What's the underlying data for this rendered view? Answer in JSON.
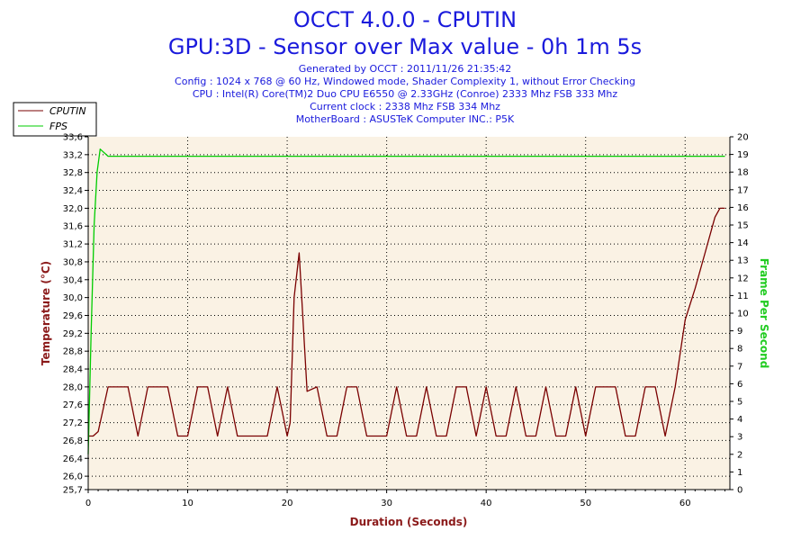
{
  "title": "OCCT 4.0.0 - CPUTIN",
  "subtitle": "GPU:3D - Sensor over Max value - 0h 1m 5s",
  "info_lines": [
    "Generated by OCCT : 2011/11/26 21:35:42",
    "Config : 1024 x 768 @ 60 Hz, Windowed mode, Shader Complexity 1, without Error Checking",
    "CPU : Intel(R) Core(TM)2 Duo CPU E6550 @ 2.33GHz (Conroe) 2333 Mhz FSB 333 Mhz",
    "Current clock : 2338 Mhz FSB 334 Mhz",
    "MotherBoard : ASUSTeK Computer INC.: P5K"
  ],
  "colors": {
    "title": "#1a1adc",
    "info": "#1a1adc",
    "cputin": "#7a0000",
    "fps": "#00cc00",
    "plot_bg": "#faf2e4",
    "ylabel_left": "#8b1a1a",
    "ylabel_right": "#22cc22",
    "xlabel": "#8b1a1a"
  },
  "chart_data": {
    "type": "line",
    "title": "OCCT 4.0.0 - CPUTIN",
    "subtitle": "GPU:3D - Sensor over Max value - 0h 1m 5s",
    "xlabel": "Duration (Seconds)",
    "ylabel": "Temperature (°C)",
    "y2label": "Frame Per Second",
    "xlim": [
      0,
      64.5
    ],
    "ylim": [
      25.7,
      33.6
    ],
    "y2lim": [
      0,
      20
    ],
    "x_ticks": [
      "0",
      "10",
      "20",
      "30",
      "40",
      "50",
      "60"
    ],
    "y_ticks": [
      "25,7",
      "26,0",
      "26,4",
      "26,8",
      "27,2",
      "27,6",
      "28,0",
      "28,4",
      "28,8",
      "29,2",
      "29,6",
      "30,0",
      "30,4",
      "30,8",
      "31,2",
      "31,6",
      "32,0",
      "32,4",
      "32,8",
      "33,2",
      "33,6"
    ],
    "y2_ticks": [
      "0",
      "1",
      "2",
      "3",
      "4",
      "5",
      "6",
      "7",
      "8",
      "9",
      "10",
      "11",
      "12",
      "13",
      "14",
      "15",
      "16",
      "17",
      "18",
      "19",
      "20"
    ],
    "grid": true,
    "legend_position": "top-left",
    "series": [
      {
        "name": "CPUTIN",
        "axis": "left",
        "x": [
          0,
          0.5,
          1,
          2,
          2.5,
          4,
          5,
          6,
          7,
          8,
          9,
          10,
          11,
          12,
          13,
          14,
          15,
          16,
          17,
          18,
          19,
          20,
          20.3,
          20.7,
          21.2,
          22,
          23,
          24,
          25,
          26,
          27,
          28,
          29,
          30,
          31,
          32,
          33,
          34,
          35,
          36,
          37,
          38,
          39,
          40,
          41,
          42,
          43,
          44,
          45,
          46,
          47,
          48,
          49,
          50,
          51,
          52,
          53,
          54,
          55,
          56,
          57,
          58,
          59,
          60,
          61,
          62,
          63,
          63.5,
          64
        ],
        "values": [
          26.9,
          26.9,
          27.0,
          28.0,
          28.0,
          28.0,
          26.9,
          28.0,
          28.0,
          28.0,
          26.9,
          26.9,
          28.0,
          28.0,
          26.9,
          28.0,
          26.9,
          26.9,
          26.9,
          26.9,
          28.0,
          26.9,
          27.2,
          30.0,
          31.0,
          27.9,
          28.0,
          26.9,
          26.9,
          28.0,
          28.0,
          26.9,
          26.9,
          26.9,
          28.0,
          26.9,
          26.9,
          28.0,
          26.9,
          26.9,
          28.0,
          28.0,
          26.9,
          28.0,
          26.9,
          26.9,
          28.0,
          26.9,
          26.9,
          28.0,
          26.9,
          26.9,
          28.0,
          26.9,
          28.0,
          28.0,
          28.0,
          26.9,
          26.9,
          28.0,
          28.0,
          26.9,
          28.0,
          29.5,
          30.2,
          31.0,
          31.8,
          32.0,
          32.0
        ]
      },
      {
        "name": "FPS",
        "axis": "right",
        "x": [
          0,
          0.3,
          0.6,
          0.9,
          1.2,
          2,
          3,
          10,
          20,
          30,
          40,
          50,
          60,
          64
        ],
        "values": [
          2,
          9,
          15,
          18,
          19.3,
          18.9,
          18.9,
          18.9,
          18.9,
          18.9,
          18.9,
          18.9,
          18.9,
          18.9
        ]
      }
    ]
  }
}
